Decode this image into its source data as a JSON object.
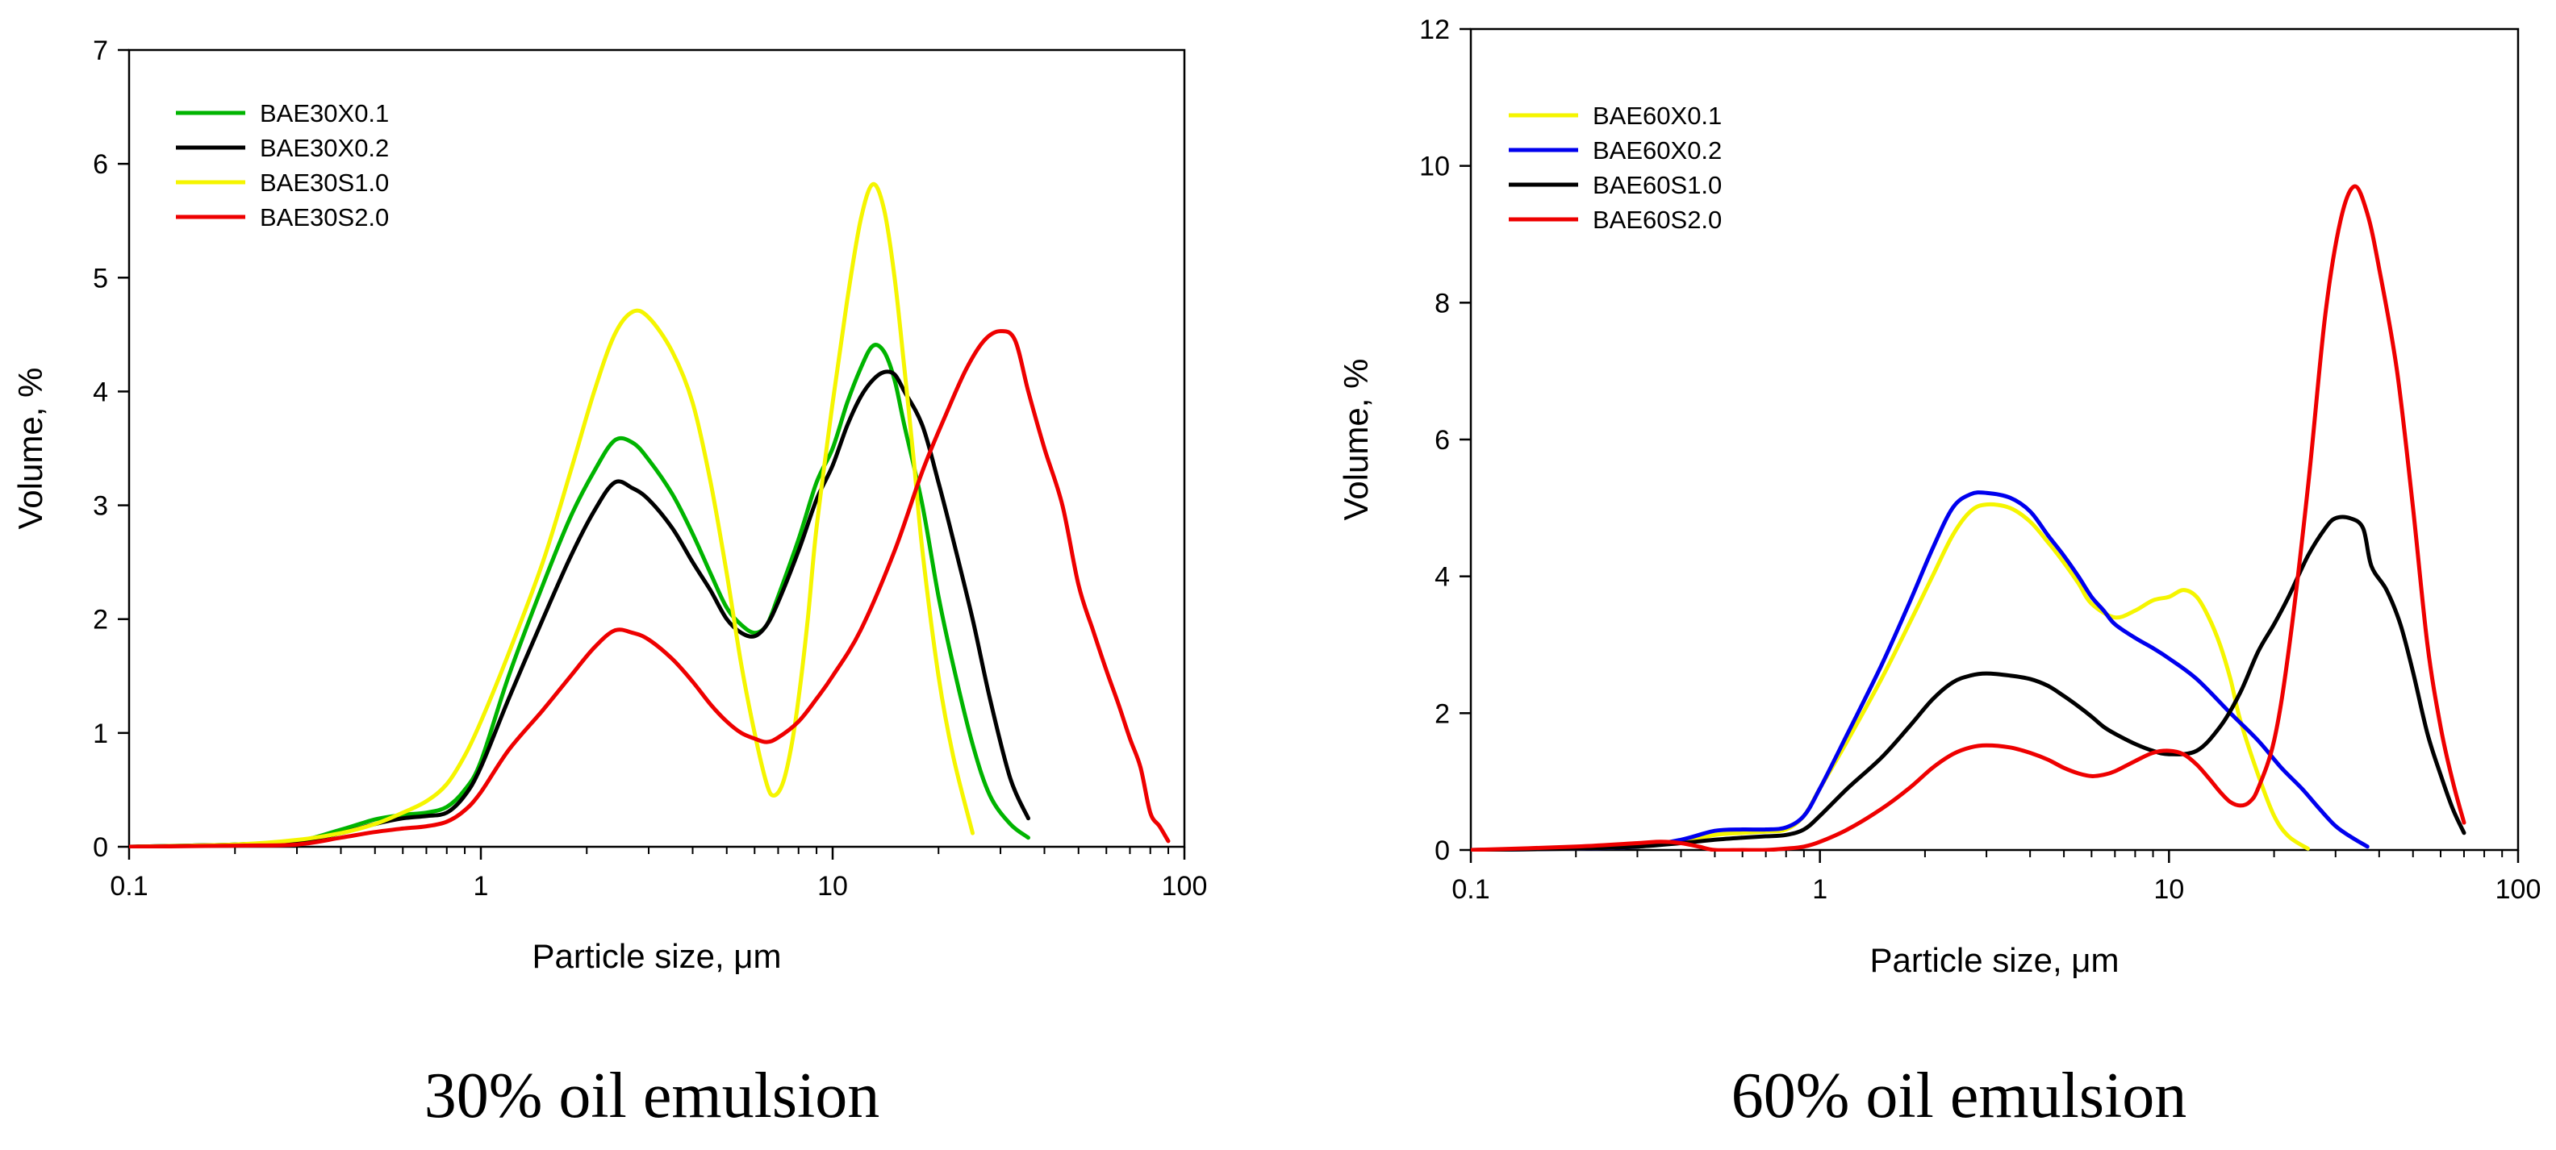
{
  "chart_data": [
    {
      "type": "line",
      "caption": "30% oil emulsion",
      "xlabel": "Particle size, μm",
      "ylabel": "Volume, %",
      "xscale": "log",
      "xlim": [
        0.1,
        100
      ],
      "ylim": [
        0,
        7
      ],
      "xticks": [
        0.1,
        1,
        10,
        100
      ],
      "xtick_labels": [
        "0.1",
        "1",
        "10",
        "100"
      ],
      "yticks": [
        0,
        1,
        2,
        3,
        4,
        5,
        6,
        7
      ],
      "legend_position": "top-left",
      "grid": false,
      "series": [
        {
          "name": "BAE30X0.1",
          "color": "#00b400",
          "x": [
            0.1,
            0.2,
            0.3,
            0.4,
            0.5,
            0.6,
            0.7,
            0.8,
            0.9,
            1.0,
            1.2,
            1.5,
            1.8,
            2.1,
            2.4,
            2.7,
            3.0,
            3.5,
            4.0,
            4.5,
            5.0,
            5.5,
            6.0,
            6.5,
            7.0,
            8.0,
            9.0,
            10.0,
            11.0,
            12.0,
            13.0,
            14.0,
            15.0,
            16.0,
            18.0,
            20.0,
            22.0,
            25.0,
            28.0,
            32.0,
            36.0
          ],
          "y": [
            0,
            0.02,
            0.05,
            0.15,
            0.24,
            0.28,
            0.3,
            0.35,
            0.5,
            0.75,
            1.5,
            2.3,
            2.9,
            3.3,
            3.57,
            3.55,
            3.4,
            3.1,
            2.75,
            2.4,
            2.1,
            1.95,
            1.88,
            1.95,
            2.2,
            2.7,
            3.2,
            3.5,
            3.9,
            4.2,
            4.4,
            4.35,
            4.1,
            3.7,
            3.0,
            2.2,
            1.6,
            0.9,
            0.45,
            0.2,
            0.08
          ]
        },
        {
          "name": "BAE30X0.2",
          "color": "#000000",
          "x": [
            0.1,
            0.2,
            0.3,
            0.4,
            0.5,
            0.6,
            0.7,
            0.8,
            0.9,
            1.0,
            1.2,
            1.5,
            1.8,
            2.1,
            2.4,
            2.7,
            3.0,
            3.5,
            4.0,
            4.5,
            5.0,
            5.5,
            6.0,
            6.5,
            7.0,
            8.0,
            9.0,
            10.0,
            11.0,
            12.0,
            13.0,
            14.0,
            15.0,
            16.0,
            18.0,
            20.0,
            22.0,
            25.0,
            28.0,
            32.0,
            36.0
          ],
          "y": [
            0,
            0.02,
            0.05,
            0.12,
            0.2,
            0.25,
            0.27,
            0.3,
            0.45,
            0.7,
            1.3,
            2.0,
            2.55,
            2.95,
            3.2,
            3.15,
            3.05,
            2.8,
            2.5,
            2.25,
            2.0,
            1.88,
            1.85,
            1.95,
            2.15,
            2.6,
            3.05,
            3.35,
            3.7,
            3.95,
            4.1,
            4.17,
            4.15,
            4.0,
            3.7,
            3.2,
            2.7,
            2.0,
            1.3,
            0.6,
            0.25
          ]
        },
        {
          "name": "BAE30S1.0",
          "color": "#f5f500",
          "x": [
            0.1,
            0.2,
            0.3,
            0.4,
            0.5,
            0.6,
            0.7,
            0.8,
            0.9,
            1.0,
            1.2,
            1.5,
            1.8,
            2.1,
            2.4,
            2.7,
            3.0,
            3.5,
            4.0,
            4.5,
            5.0,
            5.5,
            6.0,
            6.5,
            6.8,
            7.2,
            7.6,
            8.0,
            8.5,
            9.0,
            10.0,
            11.0,
            12.0,
            13.0,
            14.0,
            15.0,
            16.0,
            17.0,
            18.0,
            20.0,
            22.0,
            25.0
          ],
          "y": [
            0,
            0.02,
            0.06,
            0.12,
            0.2,
            0.3,
            0.4,
            0.55,
            0.8,
            1.1,
            1.7,
            2.5,
            3.3,
            4.0,
            4.5,
            4.7,
            4.65,
            4.35,
            3.9,
            3.2,
            2.4,
            1.6,
            1.0,
            0.55,
            0.45,
            0.55,
            0.85,
            1.3,
            2.0,
            2.8,
            3.9,
            4.8,
            5.5,
            5.82,
            5.6,
            5.0,
            4.2,
            3.4,
            2.6,
            1.5,
            0.8,
            0.12
          ]
        },
        {
          "name": "BAE30S2.0",
          "color": "#ee0000",
          "x": [
            0.1,
            0.2,
            0.3,
            0.4,
            0.5,
            0.6,
            0.7,
            0.8,
            0.9,
            1.0,
            1.2,
            1.5,
            1.8,
            2.1,
            2.4,
            2.7,
            3.0,
            3.5,
            4.0,
            4.5,
            5.0,
            5.5,
            6.0,
            6.5,
            7.0,
            8.0,
            9.0,
            10.0,
            12.0,
            15.0,
            18.0,
            21.0,
            24.0,
            27.0,
            30.0,
            33.0,
            36.0,
            40.0,
            45.0,
            50.0,
            55.0,
            60.0,
            65.0,
            70.0,
            75.0,
            80.0,
            85.0,
            90.0
          ],
          "y": [
            0,
            0.01,
            0.02,
            0.08,
            0.13,
            0.16,
            0.18,
            0.22,
            0.32,
            0.48,
            0.85,
            1.2,
            1.5,
            1.75,
            1.9,
            1.88,
            1.82,
            1.65,
            1.45,
            1.25,
            1.1,
            1.0,
            0.95,
            0.92,
            0.96,
            1.1,
            1.3,
            1.5,
            1.9,
            2.6,
            3.3,
            3.8,
            4.2,
            4.45,
            4.53,
            4.45,
            4.0,
            3.5,
            3.0,
            2.3,
            1.9,
            1.55,
            1.25,
            0.95,
            0.7,
            0.3,
            0.18,
            0.05
          ]
        }
      ]
    },
    {
      "type": "line",
      "caption": "60% oil emulsion",
      "xlabel": "Particle size, μm",
      "ylabel": "Volume, %",
      "xscale": "log",
      "xlim": [
        0.1,
        100
      ],
      "ylim": [
        0,
        12
      ],
      "xticks": [
        0.1,
        1,
        10,
        100
      ],
      "xtick_labels": [
        "0.1",
        "1",
        "10",
        "100"
      ],
      "yticks": [
        0,
        2,
        4,
        6,
        8,
        10,
        12
      ],
      "legend_position": "top-left",
      "grid": false,
      "series": [
        {
          "name": "BAE60X0.1",
          "color": "#f5f500",
          "x": [
            0.1,
            0.2,
            0.3,
            0.4,
            0.5,
            0.6,
            0.7,
            0.8,
            0.9,
            1.0,
            1.2,
            1.5,
            1.8,
            2.1,
            2.4,
            2.7,
            3.0,
            3.5,
            4.0,
            4.5,
            5.0,
            5.5,
            6.0,
            7.0,
            8.0,
            9.0,
            10.0,
            11.0,
            12.0,
            13.0,
            14.0,
            15.0,
            16.0,
            18.0,
            20.0,
            22.0,
            25.0
          ],
          "y": [
            0,
            0.02,
            0.05,
            0.12,
            0.22,
            0.25,
            0.27,
            0.3,
            0.5,
            0.9,
            1.6,
            2.5,
            3.3,
            4.0,
            4.6,
            4.95,
            5.05,
            5.0,
            4.8,
            4.5,
            4.2,
            3.9,
            3.6,
            3.4,
            3.5,
            3.65,
            3.7,
            3.8,
            3.7,
            3.4,
            3.0,
            2.5,
            1.9,
            1.1,
            0.5,
            0.2,
            0.02
          ]
        },
        {
          "name": "BAE60X0.2",
          "color": "#0000ee",
          "x": [
            0.1,
            0.2,
            0.3,
            0.4,
            0.5,
            0.6,
            0.7,
            0.8,
            0.9,
            1.0,
            1.2,
            1.5,
            1.8,
            2.1,
            2.4,
            2.7,
            3.0,
            3.5,
            4.0,
            4.5,
            5.0,
            5.5,
            6.0,
            6.5,
            7.0,
            8.0,
            9.0,
            10.0,
            12.0,
            15.0,
            18.0,
            21.0,
            24.0,
            27.0,
            30.0,
            33.0,
            37.0
          ],
          "y": [
            0,
            0.02,
            0.05,
            0.15,
            0.28,
            0.3,
            0.3,
            0.33,
            0.5,
            0.9,
            1.7,
            2.7,
            3.6,
            4.4,
            5.0,
            5.2,
            5.22,
            5.15,
            4.95,
            4.6,
            4.3,
            4.0,
            3.7,
            3.5,
            3.3,
            3.1,
            2.95,
            2.8,
            2.5,
            2.0,
            1.6,
            1.2,
            0.9,
            0.6,
            0.35,
            0.2,
            0.05
          ]
        },
        {
          "name": "BAE60S1.0",
          "color": "#000000",
          "x": [
            0.1,
            0.2,
            0.3,
            0.4,
            0.5,
            0.6,
            0.7,
            0.8,
            0.9,
            1.0,
            1.2,
            1.5,
            1.8,
            2.1,
            2.4,
            2.7,
            3.0,
            3.5,
            4.0,
            4.5,
            5.0,
            5.5,
            6.0,
            6.5,
            7.0,
            8.0,
            9.0,
            10.0,
            12.0,
            14.0,
            16.0,
            18.0,
            20.0,
            22.0,
            25.0,
            28.0,
            30.0,
            33.0,
            36.0,
            38.0,
            42.0,
            46.0,
            50.0,
            55.0,
            60.0,
            65.0,
            70.0
          ],
          "y": [
            0,
            0.02,
            0.05,
            0.1,
            0.15,
            0.18,
            0.2,
            0.22,
            0.3,
            0.5,
            0.9,
            1.35,
            1.8,
            2.2,
            2.45,
            2.55,
            2.58,
            2.55,
            2.5,
            2.4,
            2.25,
            2.1,
            1.95,
            1.8,
            1.7,
            1.55,
            1.45,
            1.4,
            1.45,
            1.8,
            2.3,
            2.9,
            3.3,
            3.7,
            4.3,
            4.7,
            4.85,
            4.85,
            4.7,
            4.15,
            3.8,
            3.3,
            2.6,
            1.7,
            1.1,
            0.6,
            0.25
          ]
        },
        {
          "name": "BAE60S2.0",
          "color": "#ee0000",
          "x": [
            0.1,
            0.2,
            0.3,
            0.35,
            0.4,
            0.45,
            0.5,
            0.6,
            0.7,
            0.8,
            0.9,
            1.0,
            1.2,
            1.5,
            1.8,
            2.1,
            2.4,
            2.7,
            3.0,
            3.5,
            4.0,
            4.5,
            5.0,
            5.5,
            6.0,
            6.5,
            7.0,
            8.0,
            9.0,
            10.0,
            11.0,
            12.0,
            13.0,
            14.0,
            15.0,
            16.0,
            17.0,
            18.0,
            20.0,
            22.0,
            25.0,
            28.0,
            31.0,
            34.0,
            37.0,
            40.0,
            45.0,
            50.0,
            55.0,
            60.0,
            65.0,
            70.0
          ],
          "y": [
            0,
            0.05,
            0.1,
            0.12,
            0.1,
            0.05,
            0,
            0,
            0,
            0.02,
            0.05,
            0.12,
            0.3,
            0.6,
            0.9,
            1.2,
            1.4,
            1.5,
            1.53,
            1.5,
            1.42,
            1.32,
            1.2,
            1.12,
            1.08,
            1.1,
            1.15,
            1.3,
            1.42,
            1.45,
            1.4,
            1.25,
            1.05,
            0.85,
            0.7,
            0.65,
            0.7,
            0.9,
            1.6,
            2.9,
            5.3,
            7.8,
            9.2,
            9.7,
            9.3,
            8.5,
            7.0,
            5.0,
            3.0,
            1.8,
            1.0,
            0.4
          ]
        }
      ]
    }
  ]
}
